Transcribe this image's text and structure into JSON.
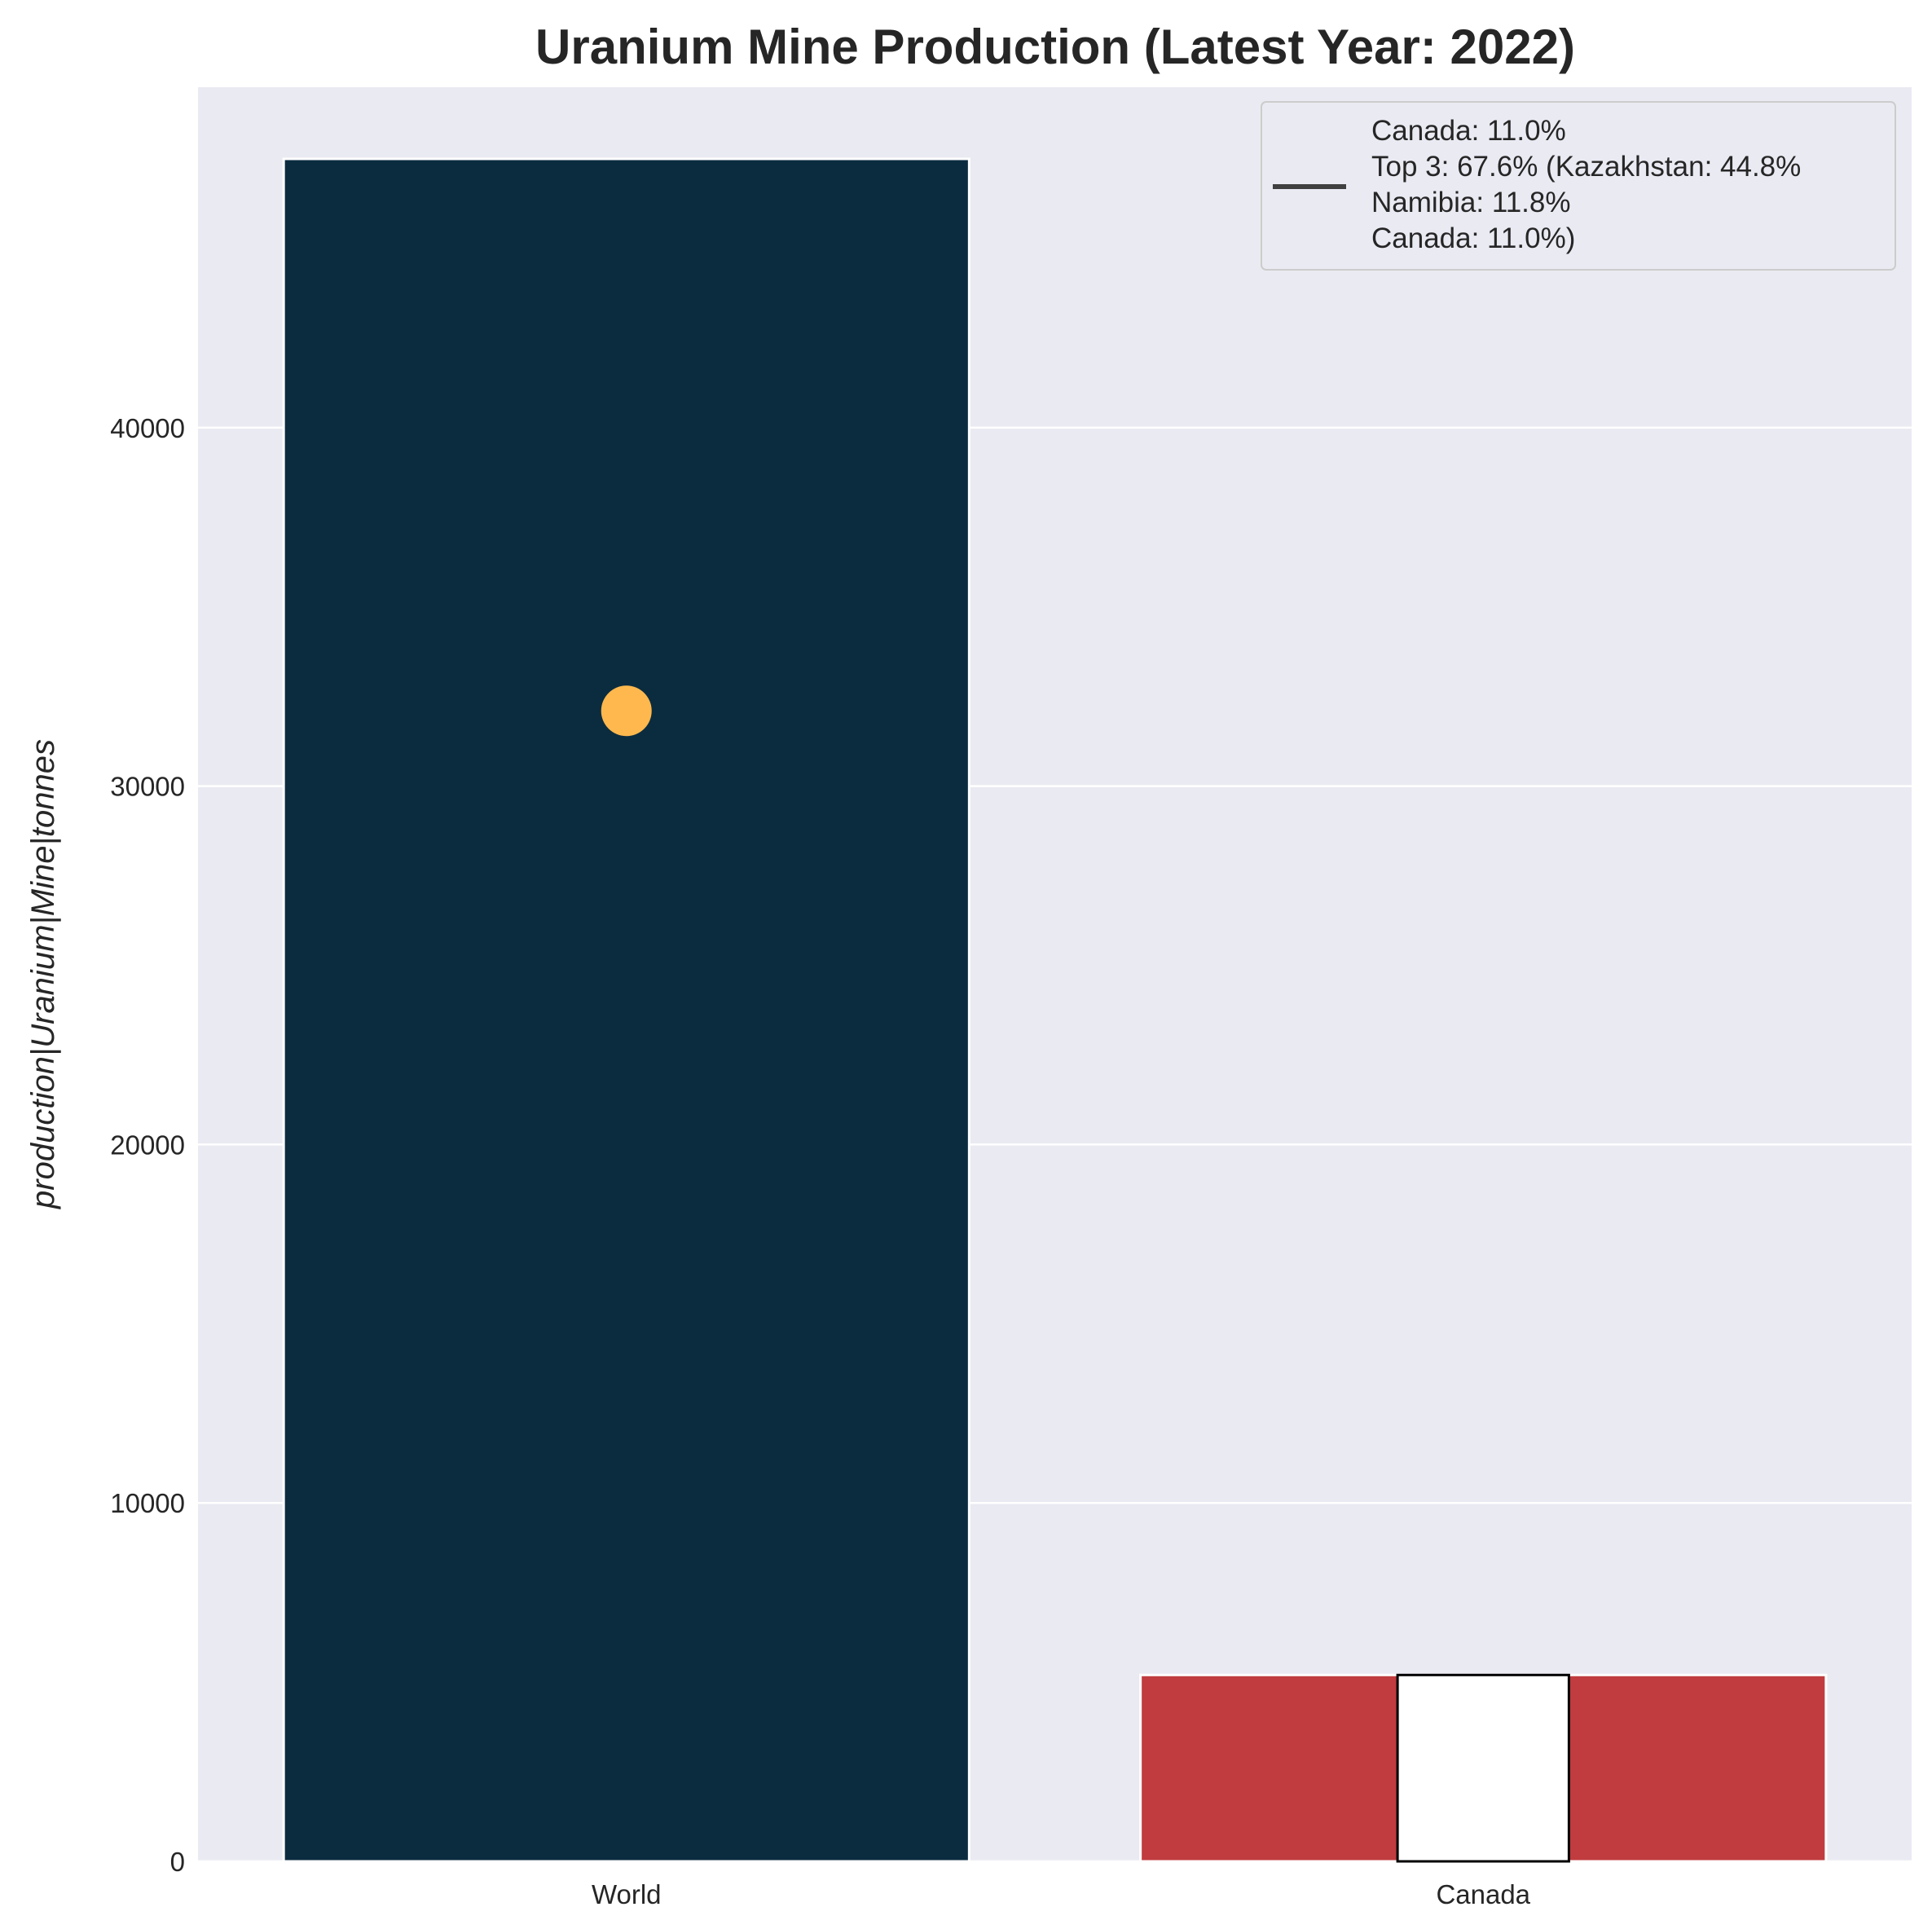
{
  "chart_data": {
    "type": "bar",
    "title": "Uranium Mine Production (Latest Year: 2022)",
    "xlabel": "",
    "ylabel": "production|Uranium|Mine|tonnes",
    "categories": [
      "World",
      "Canada"
    ],
    "values": [
      47500,
      5200
    ],
    "bar_colors": [
      "#0b2c3f",
      "#c03c3f"
    ],
    "ylim": [
      0,
      49500
    ],
    "yticks": [
      0,
      10000,
      20000,
      30000,
      40000
    ],
    "ytick_labels": [
      "0",
      "10000",
      "20000",
      "30000",
      "40000"
    ],
    "grid": true,
    "background": "#eaeaf2",
    "marker": {
      "category": "World",
      "y": 32100,
      "color": "#ffb84d"
    },
    "canada_highlight": {
      "category": "Canada",
      "value": 5200,
      "fill": "#ffffff",
      "edge": "#000000"
    },
    "legend": {
      "placement": "upper right",
      "lines": [
        "Canada: 11.0%",
        "Top 3: 67.6% (Kazakhstan: 44.8%",
        "Namibia: 11.8%",
        "Canada: 11.0%)"
      ],
      "handle_color": "#404040"
    }
  }
}
